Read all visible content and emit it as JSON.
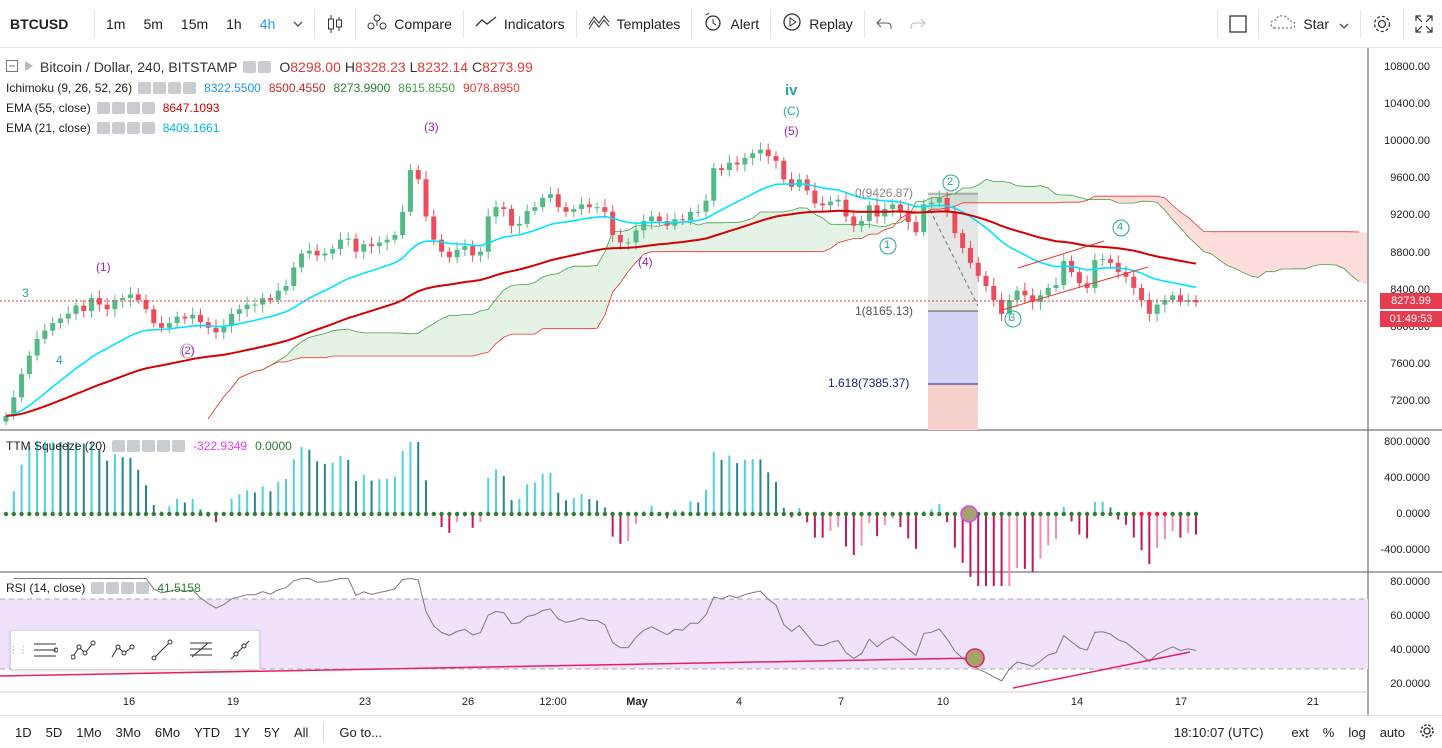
{
  "toolbar": {
    "symbol": "BTCUSD",
    "intervals": [
      "1m",
      "5m",
      "15m",
      "1h",
      "4h"
    ],
    "active_interval": "4h",
    "compare": "Compare",
    "indicators": "Indicators",
    "templates": "Templates",
    "alert": "Alert",
    "replay": "Replay",
    "star": "Star"
  },
  "legend": {
    "title": "Bitcoin / Dollar, 240, BITSTAMP",
    "ohlc": [
      {
        "k": "O",
        "v": "8298.00"
      },
      {
        "k": "H",
        "v": "8328.23"
      },
      {
        "k": "L",
        "v": "8232.14"
      },
      {
        "k": "C",
        "v": "8273.99"
      }
    ],
    "ichimoku": {
      "label": "Ichimoku (9, 26, 52, 26)",
      "values": [
        {
          "v": "8322.5500",
          "color": "#2196f3"
        },
        {
          "v": "8500.4550",
          "color": "#c62828"
        },
        {
          "v": "8273.9900",
          "color": "#2e7d32"
        },
        {
          "v": "8615.8550",
          "color": "#43a047"
        },
        {
          "v": "9078.8950",
          "color": "#e53935"
        }
      ]
    },
    "ema55": {
      "label": "EMA (55, close)",
      "value": "8647.1093"
    },
    "ema21": {
      "label": "EMA (21, close)",
      "value": "8409.1661"
    }
  },
  "price_axis": [
    "10800.00",
    "10400.00",
    "10000.00",
    "9600.00",
    "9200.00",
    "8800.00",
    "8400.00",
    "8000.00",
    "7600.00",
    "7200.00"
  ],
  "last_price": "8273.99",
  "countdown": "01:49:53",
  "fib": {
    "level1": "1(8165.13)",
    "level1618": "1.618(7385.37)",
    "level0": "0(9426.87)"
  },
  "waves": {
    "purple": [
      "(1)",
      "(2)",
      "(3)",
      "(4)",
      "(5)"
    ],
    "blue": [
      "1",
      "2",
      "3",
      "4"
    ],
    "iv": "iv",
    "c": "(C)",
    "plain": [
      "3",
      "4"
    ]
  },
  "ttm": {
    "label": "TTM Squeeze (20)",
    "value1": "-322.9349",
    "value2": "0.0000",
    "axis": [
      "800.0000",
      "400.0000",
      "0.0000",
      "-400.0000"
    ]
  },
  "rsi": {
    "label": "RSI (14, close)",
    "value": "41.5158",
    "axis": [
      "80.0000",
      "60.0000",
      "40.0000",
      "20.0000"
    ]
  },
  "time_axis": [
    "16",
    "19",
    "23",
    "26",
    "12:00",
    "May",
    "4",
    "7",
    "10",
    "14",
    "17",
    "21"
  ],
  "bottom": {
    "ranges": [
      "1D",
      "5D",
      "1Mo",
      "3Mo",
      "6Mo",
      "YTD",
      "1Y",
      "5Y",
      "All"
    ],
    "goto": "Go to...",
    "clock": "18:10:07 (UTC)",
    "ext": "ext",
    "pct": "%",
    "log": "log",
    "auto": "auto"
  },
  "colors": {
    "up": "#53b987",
    "down": "#eb4d5c",
    "ema55": "#d50000",
    "ema21": "#00e5ff",
    "accent": "#2196f3"
  },
  "chart_data": {
    "type": "candlestick",
    "symbol": "BTCUSD",
    "ylim": [
      7000,
      10900
    ],
    "closes": [
      7050,
      7250,
      7500,
      7700,
      7880,
      7970,
      8050,
      8100,
      8150,
      8240,
      8180,
      8320,
      8250,
      8200,
      8300,
      8320,
      8360,
      8300,
      8200,
      8050,
      8000,
      8050,
      8120,
      8100,
      8140,
      8060,
      8000,
      7950,
      8020,
      8150,
      8200,
      8250,
      8250,
      8320,
      8300,
      8400,
      8450,
      8650,
      8800,
      8830,
      8780,
      8800,
      8850,
      8950,
      8960,
      8820,
      8900,
      8880,
      8920,
      8950,
      9000,
      9250,
      9700,
      9600,
      9200,
      8950,
      8820,
      8760,
      8840,
      8880,
      8780,
      8820,
      9200,
      9300,
      9280,
      9100,
      9120,
      9260,
      9300,
      9400,
      9440,
      9300,
      9250,
      9280,
      9330,
      9300,
      9300,
      9250,
      9000,
      8920,
      8920,
      9050,
      9150,
      9200,
      9150,
      9100,
      9170,
      9160,
      9250,
      9250,
      9370,
      9720,
      9700,
      9780,
      9760,
      9830,
      9880,
      9920,
      9850,
      9800,
      9600,
      9520,
      9600,
      9480,
      9340,
      9320,
      9360,
      9380,
      9200,
      9100,
      9150,
      9320,
      9200,
      9280,
      9330,
      9250,
      9140,
      9030,
      9330,
      9350,
      9400,
      9250,
      9020,
      8860,
      8700,
      8560,
      8450,
      8300,
      8150,
      8300,
      8400,
      8350,
      8280,
      8350,
      8430,
      8460,
      8720,
      8600,
      8480,
      8430,
      8730,
      8740,
      8700,
      8600,
      8550,
      8430,
      8300,
      8150,
      8250,
      8300,
      8350,
      8280,
      8300,
      8274
    ]
  }
}
